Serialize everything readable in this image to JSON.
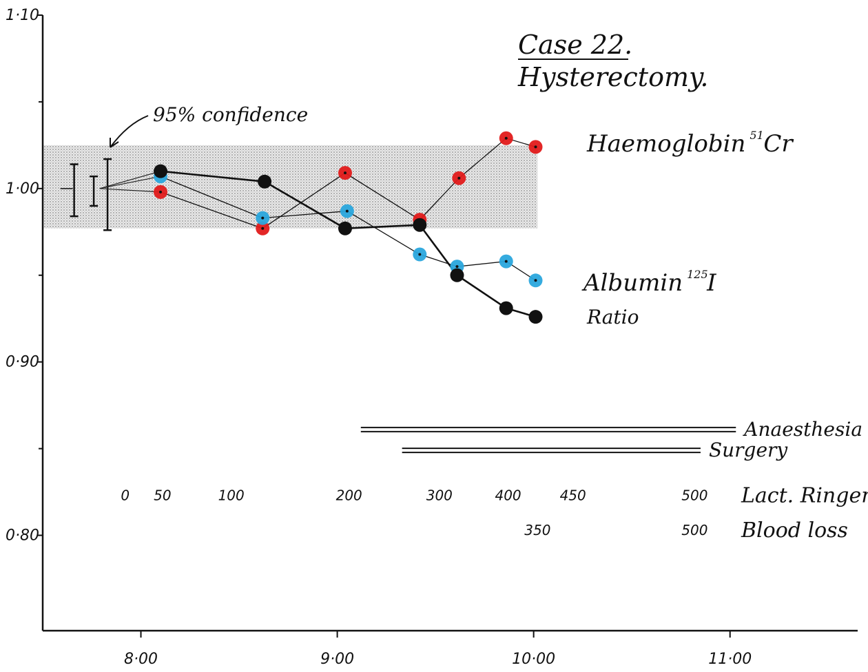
{
  "chart_data": {
    "type": "line",
    "title": "Case 22.",
    "subtitle": "Hysterectomy.",
    "x_axis": {
      "ticks": [
        8.0,
        9.0,
        10.0,
        11.0
      ],
      "tick_labels": [
        "8·00",
        "9·00",
        "10·00",
        "11·00"
      ],
      "range": [
        7.5,
        11.65
      ]
    },
    "y_axis": {
      "ticks": [
        0.8,
        0.9,
        1.0,
        1.1
      ],
      "tick_labels": [
        "0·80",
        "0·90",
        "1·00",
        "1·10"
      ],
      "minor_ticks": [
        0.85,
        0.95,
        1.05
      ],
      "range": [
        0.745,
        1.1
      ]
    },
    "confidence_band": {
      "label": "95% confidence",
      "x_range": [
        7.5,
        10.02
      ],
      "y_range": [
        0.977,
        1.025
      ],
      "bars": [
        {
          "x": 7.66,
          "lo": 0.984,
          "hi": 1.014
        },
        {
          "x": 7.76,
          "lo": 0.99,
          "hi": 1.007
        },
        {
          "x": 7.83,
          "lo": 0.976,
          "hi": 1.017
        }
      ],
      "pivot": {
        "x": 7.79,
        "y": 1.0
      }
    },
    "series": [
      {
        "name": "Haemoglobin 51Cr",
        "label_main": "Haemoglobin",
        "label_sup": "51",
        "label_tail": "Cr",
        "color": "#e11b1b",
        "style": "thin",
        "x": [
          8.1,
          8.62,
          9.04,
          9.42,
          9.62,
          9.86,
          10.01
        ],
        "y": [
          0.998,
          0.977,
          1.009,
          0.982,
          1.006,
          1.029,
          1.024
        ]
      },
      {
        "name": "Albumin 125I",
        "label_main": "Albumin",
        "label_sup": "125",
        "label_tail": "I",
        "color": "#2aa6dd",
        "style": "thin",
        "x": [
          8.1,
          8.62,
          9.05,
          9.42,
          9.61,
          9.86,
          10.01
        ],
        "y": [
          1.007,
          0.983,
          0.987,
          0.962,
          0.955,
          0.958,
          0.947
        ]
      },
      {
        "name": "Ratio",
        "label_main": "Ratio",
        "label_sup": "",
        "label_tail": "",
        "color": "#111111",
        "style": "thick",
        "x": [
          8.1,
          8.63,
          9.04,
          9.42,
          9.61,
          9.86,
          10.01
        ],
        "y": [
          1.01,
          1.004,
          0.977,
          0.979,
          0.95,
          0.931,
          0.926
        ]
      }
    ],
    "bars_annotations": [
      {
        "label": "Anaesthesia",
        "x_start": 9.12,
        "x_end": 11.03,
        "y": 0.861
      },
      {
        "label": "Surgery",
        "x_start": 9.33,
        "x_end": 10.85,
        "y": 0.849
      }
    ],
    "rows": [
      {
        "label": "Lact. Ringer's",
        "y": 0.823,
        "values": [
          {
            "x": 7.92,
            "text": "0"
          },
          {
            "x": 8.11,
            "text": "50"
          },
          {
            "x": 8.46,
            "text": "100"
          },
          {
            "x": 9.06,
            "text": "200"
          },
          {
            "x": 9.52,
            "text": "300"
          },
          {
            "x": 9.87,
            "text": "400"
          },
          {
            "x": 10.2,
            "text": "450"
          },
          {
            "x": 10.82,
            "text": "500"
          }
        ]
      },
      {
        "label": "Blood loss",
        "y": 0.803,
        "values": [
          {
            "x": 10.02,
            "text": "350"
          },
          {
            "x": 10.82,
            "text": "500"
          }
        ]
      }
    ]
  }
}
